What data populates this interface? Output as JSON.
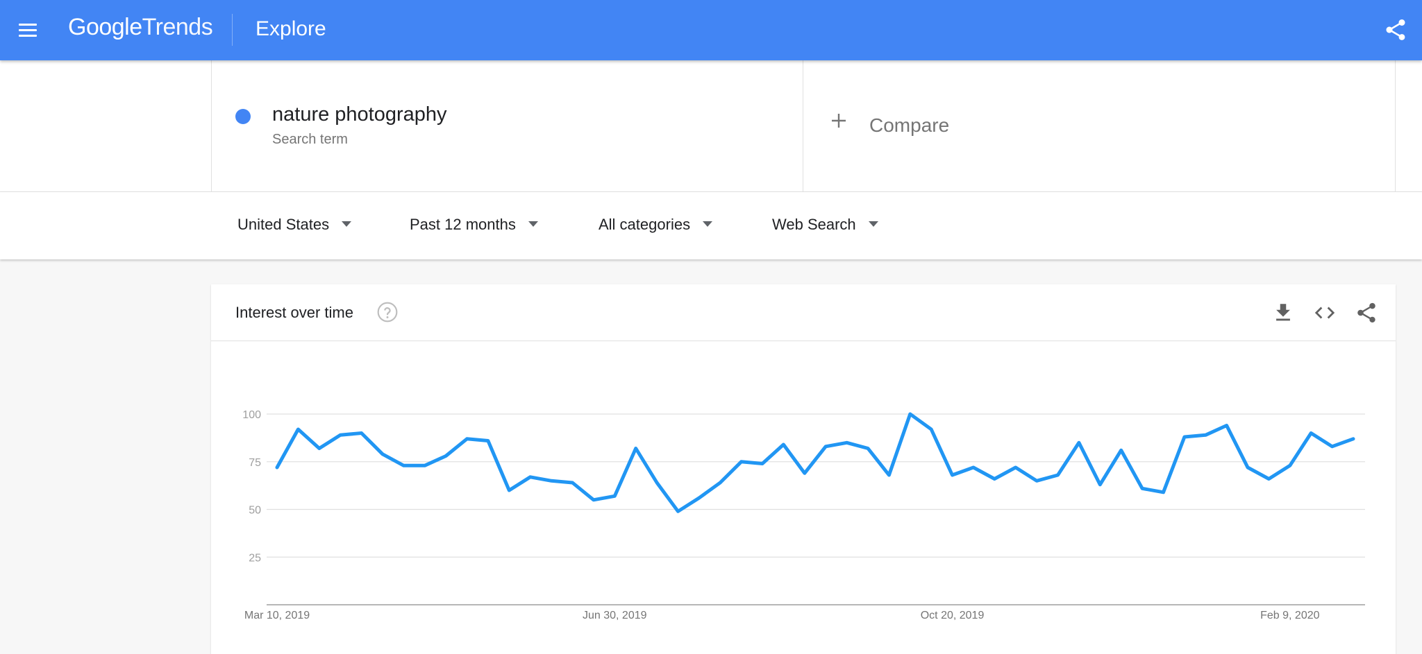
{
  "header": {
    "logo_google": "Google",
    "logo_trends": "Trends",
    "title": "Explore",
    "icons": {
      "menu": "menu-icon",
      "share": "share-icon"
    }
  },
  "term": {
    "name": "nature photography",
    "sub": "Search term",
    "color": "#4285f4"
  },
  "compare": {
    "label": "Compare"
  },
  "filters": {
    "region": "United States",
    "time": "Past 12 months",
    "category": "All categories",
    "search_type": "Web Search"
  },
  "card": {
    "title": "Interest over time",
    "icons": [
      "help-icon",
      "download-icon",
      "embed-icon",
      "share-icon"
    ]
  },
  "chart_data": {
    "type": "line",
    "color": "#2196f3",
    "ylim": [
      0,
      100
    ],
    "yticks": [
      25,
      50,
      75,
      100
    ],
    "xtick_labels": [
      "Mar 10, 2019",
      "Jun 30, 2019",
      "Oct 20, 2019",
      "Feb 9, 2020"
    ],
    "xtick_index": [
      0,
      16,
      32,
      48
    ],
    "values": [
      72,
      92,
      82,
      89,
      90,
      79,
      73,
      73,
      78,
      87,
      86,
      60,
      67,
      65,
      64,
      55,
      57,
      82,
      64,
      49,
      56,
      64,
      75,
      74,
      84,
      69,
      83,
      85,
      82,
      68,
      100,
      92,
      68,
      72,
      66,
      72,
      65,
      68,
      85,
      63,
      81,
      61,
      59,
      88,
      89,
      94,
      72,
      66,
      73,
      90,
      83,
      87
    ]
  }
}
